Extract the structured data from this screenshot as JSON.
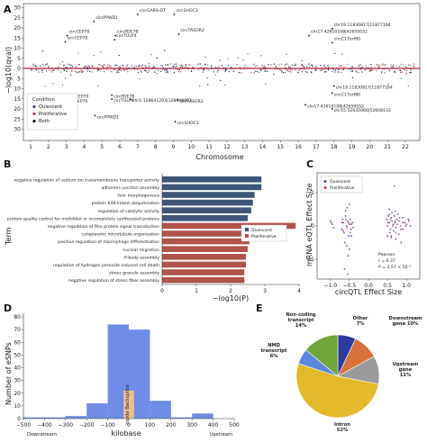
{
  "panels": {
    "A": {
      "label": "A",
      "chart_data": {
        "type": "scatter",
        "xlabel": "Chromosome",
        "ylabel": "−log10(qval)",
        "ylim_top": [
          0,
          30
        ],
        "ylim_bottom": [
          0,
          30
        ],
        "ticks_y_top": [
          "30",
          "25",
          "20",
          "15",
          "10",
          "5",
          "0"
        ],
        "ticks_y_bottom": [
          "0",
          "5",
          "10",
          "15",
          "20",
          "25",
          "30"
        ],
        "ticks_x": [
          "1",
          "2",
          "3",
          "4",
          "5",
          "6",
          "7",
          "8",
          "9",
          "10",
          "11",
          "12",
          "13",
          "14",
          "15",
          "16",
          "17",
          "18",
          "19",
          "20",
          "21",
          "22"
        ],
        "legend_title": "Condition",
        "legend": [
          {
            "name": "Quiescent",
            "color": "#4a4a9a"
          },
          {
            "name": "Proliferative",
            "color": "#c0394b"
          },
          {
            "name": "Both",
            "color": "#111111"
          }
        ],
        "top_annotations": [
          {
            "text": "circPPWD1",
            "x": 4.55,
            "y": 24.5
          },
          {
            "text": "circGARS-DT",
            "x": 7.0,
            "y": 28.0
          },
          {
            "text": "circSHOC1",
            "x": 9.05,
            "y": 28.0
          },
          {
            "text": "circCEP70",
            "x": 3.05,
            "y": 17.5
          },
          {
            "text": "circCEP70",
            "x": 2.95,
            "y": 14.5
          },
          {
            "text": "circPDE7B",
            "x": 5.75,
            "y": 17.5
          },
          {
            "text": "circTULP4",
            "x": 5.7,
            "y": 15.5
          },
          {
            "text": "circTASOR2",
            "x": 9.3,
            "y": 18.2
          },
          {
            "text": "chr19:11830817|11877164",
            "x": 17.9,
            "y": 21.0
          },
          {
            "text": "chr17:42610108|42659552",
            "x": 16.6,
            "y": 17.5
          },
          {
            "text": "circC17orf80",
            "x": 17.9,
            "y": 14.0
          }
        ],
        "bottom_annotations": [
          {
            "text": "circCEP70",
            "x": 3.0,
            "y": 14.5
          },
          {
            "text": "circCEP70",
            "x": 2.95,
            "y": 16.8
          },
          {
            "text": "circPDE7B",
            "x": 5.55,
            "y": 14.5
          },
          {
            "text": "circTULP4",
            "x": 5.55,
            "y": 16.5
          },
          {
            "text": "chr1:128641203|128648962",
            "x": 6.6,
            "y": 16.5
          },
          {
            "text": "circTASOR2",
            "x": 9.25,
            "y": 16.8
          },
          {
            "text": "chr19:11830817|11877164",
            "x": 18.0,
            "y": 10.0
          },
          {
            "text": "circC17orf80",
            "x": 17.9,
            "y": 13.5
          },
          {
            "text": "chr17:42610108|42659552",
            "x": 16.4,
            "y": 19.3
          },
          {
            "text": "chr15:52635066|52608133",
            "x": 17.9,
            "y": 21.3
          },
          {
            "text": "circPPWD1",
            "x": 4.6,
            "y": 24.6
          },
          {
            "text": "circSHOC1",
            "x": 9.1,
            "y": 27.6
          }
        ]
      }
    },
    "B": {
      "label": "B",
      "chart_data": {
        "type": "bar",
        "orientation": "horizontal",
        "xlabel": "−log10(P)",
        "ylabel": "Term",
        "xlim": [
          0,
          4
        ],
        "ticks_x": [
          "0",
          "1",
          "2",
          "3",
          "4"
        ],
        "legend": [
          {
            "name": "Quiescent",
            "color": "#3d5679"
          },
          {
            "name": "Proliferative",
            "color": "#b0534a"
          }
        ],
        "series": [
          {
            "name": "Quiescent",
            "categories": [
              "negative regulation of sodium ion transmembrane transporter activity",
              "adherens junction assembly",
              "liver morphogenesis",
              "protein K48-linked ubiquitination",
              "regulation of catalytic activity",
              "protein quality control for misfolded or incompletely synthesized proteins"
            ],
            "values": [
              2.9,
              2.9,
              2.7,
              2.65,
              2.6,
              2.5
            ]
          },
          {
            "name": "Proliferative",
            "categories": [
              "negative regulation of Rho protein signal transduction",
              "cytoplasmic microtubule organization",
              "positive regulation of macrophage differentiation",
              "nuclear migration",
              "P-body assembly",
              "regulation of hydrogen peroxide-induced cell death",
              "stress granule assembly",
              "negative regulation of stress fiber assembly"
            ],
            "values": [
              3.9,
              2.85,
              2.55,
              2.5,
              2.45,
              2.45,
              2.4,
              2.4
            ]
          }
        ]
      }
    },
    "C": {
      "label": "C",
      "chart_data": {
        "type": "scatter",
        "xlabel": "circQTL Effect Size",
        "ylabel": "mRNA eQTL Effect Size",
        "xlim": [
          -1.35,
          1.35
        ],
        "ylim": [
          -1.6,
          1.6
        ],
        "ticks_x": [
          "−1.0",
          "−0.5",
          "0.0",
          "0.5",
          "1.0"
        ],
        "ticks_y": [
          "−1",
          "0",
          "1"
        ],
        "legend": [
          {
            "name": "Quiescent",
            "color": "#4a4a9a"
          },
          {
            "name": "Proliferative",
            "color": "#c0394b"
          }
        ],
        "stats": {
          "title": "Pearson",
          "r": "r = 0.37",
          "p": "P = 3.57 × 10⁻⁵"
        },
        "series": [
          {
            "name": "Quiescent",
            "x": [
              -1.0,
              -0.95,
              -0.92,
              -0.7,
              -0.68,
              -0.66,
              -0.64,
              -0.6,
              -0.58,
              -0.55,
              -0.52,
              -0.5,
              -0.48,
              -0.46,
              -0.42,
              -0.4,
              -0.62,
              -0.57,
              -0.53,
              -0.45,
              -0.6,
              -0.56,
              -0.5,
              -0.44,
              0.48,
              0.5,
              0.52,
              0.55,
              0.58,
              0.6,
              0.62,
              0.65,
              0.68,
              0.7,
              0.72,
              0.75,
              0.8,
              0.85,
              0.9,
              0.95,
              1.0,
              1.05,
              1.1,
              0.5,
              0.56,
              0.6,
              0.66,
              0.72,
              0.8,
              0.9,
              0.55,
              0.62,
              0.7,
              0.78,
              0.86
            ],
            "y": [
              0.15,
              0.05,
              -0.05,
              -0.1,
              0.2,
              0.1,
              -0.2,
              0.3,
              0.0,
              0.15,
              -0.3,
              0.05,
              0.2,
              -0.1,
              0.1,
              -0.05,
              -0.5,
              -0.6,
              -0.9,
              -0.3,
              0.45,
              0.55,
              -0.7,
              1.1,
              0.2,
              0.0,
              0.3,
              0.1,
              -0.1,
              0.25,
              0.15,
              0.05,
              0.3,
              0.1,
              -0.05,
              0.2,
              0.15,
              0.0,
              0.25,
              0.1,
              0.05,
              0.2,
              0.0,
              -0.3,
              -0.2,
              -0.35,
              -0.15,
              -0.4,
              -0.25,
              -0.1,
              0.5,
              0.4,
              0.45,
              0.35,
              -0.5
            ]
          },
          {
            "name": "Proliferative",
            "x": [
              -0.98,
              -0.7,
              -0.66,
              -0.6,
              -0.56,
              -0.52,
              -0.48,
              -0.45,
              -0.63,
              -0.55,
              -0.5,
              0.52,
              0.58,
              0.64,
              0.7,
              0.76,
              0.82,
              0.9,
              0.98,
              1.06,
              0.6,
              0.72,
              0.85,
              0.55,
              0.68
            ],
            "y": [
              0.1,
              0.1,
              -0.15,
              0.2,
              -0.05,
              0.1,
              -0.2,
              0.05,
              -1.3,
              -1.45,
              0.65,
              0.1,
              0.2,
              0.0,
              0.15,
              0.05,
              0.25,
              0.1,
              0.0,
              0.15,
              -0.3,
              -0.2,
              -0.1,
              0.35,
              1.2
            ]
          }
        ]
      }
    },
    "D": {
      "label": "D",
      "chart_data": {
        "type": "bar",
        "xlabel": "kilobase",
        "ylabel": "Number of eSNPs",
        "xlim": [
          -500,
          500
        ],
        "ylim": [
          0,
          80
        ],
        "ticks_x": [
          "−500",
          "−400",
          "−300",
          "−200",
          "−100",
          "0",
          "100",
          "200",
          "300",
          "400",
          "500"
        ],
        "ticks_y": [
          "0",
          "10",
          "20",
          "30",
          "40",
          "50",
          "60",
          "70",
          "80"
        ],
        "bins": [
          {
            "from": -500,
            "to": -400,
            "value": 1
          },
          {
            "from": -400,
            "to": -300,
            "value": 1
          },
          {
            "from": -300,
            "to": -200,
            "value": 2
          },
          {
            "from": -200,
            "to": -100,
            "value": 12
          },
          {
            "from": -100,
            "to": 0,
            "value": 74
          },
          {
            "from": 0,
            "to": 100,
            "value": 70
          },
          {
            "from": 100,
            "to": 200,
            "value": 14
          },
          {
            "from": 200,
            "to": 300,
            "value": 1
          },
          {
            "from": 300,
            "to": 400,
            "value": 4
          },
          {
            "from": 400,
            "to": 500,
            "value": 0
          }
        ],
        "backsplice_span": {
          "from": -25,
          "to": 25,
          "value": 22
        },
        "backsplice_label": "Inside Backsplice",
        "left_caption": "Downstream",
        "right_caption": "Upstream",
        "colors": {
          "bar": "#6f8ce6",
          "backsplice": "#e8bf91"
        }
      }
    },
    "E": {
      "label": "E",
      "chart_data": {
        "type": "pie",
        "slices": [
          {
            "name": "Other",
            "pct": "7%",
            "value": 7,
            "color": "#2a3a9e"
          },
          {
            "name": "Downstream gene",
            "pct": "10%",
            "value": 10,
            "color": "#d6723a"
          },
          {
            "name": "Upstream gene",
            "pct": "11%",
            "value": 11,
            "color": "#9b9b9b"
          },
          {
            "name": "Intron",
            "pct": "52%",
            "value": 52,
            "color": "#e2b92a"
          },
          {
            "name": "NMD transcript",
            "pct": "6%",
            "value": 6,
            "color": "#5b86dc"
          },
          {
            "name": "Non-coding transcript",
            "pct": "14%",
            "value": 14,
            "color": "#6fa63b"
          }
        ],
        "labels": [
          {
            "lines": [
              "Non-coding",
              "transcript",
              "14%"
            ],
            "color": "#5b8f2e"
          },
          {
            "lines": [
              "Other",
              "7%"
            ],
            "color": "#2a3a9e"
          },
          {
            "lines": [
              "Downstream",
              "gene 10%"
            ],
            "color": "#2a3a9e"
          },
          {
            "lines": [
              "NMD",
              "transcript",
              "6%"
            ],
            "color": "#2a5fb5"
          },
          {
            "lines": [
              "Upstream",
              "gene",
              "11%"
            ],
            "color": "#7a7a7a"
          },
          {
            "lines": [
              "Intron",
              "52%"
            ],
            "color": "#c98a10"
          }
        ]
      }
    }
  }
}
